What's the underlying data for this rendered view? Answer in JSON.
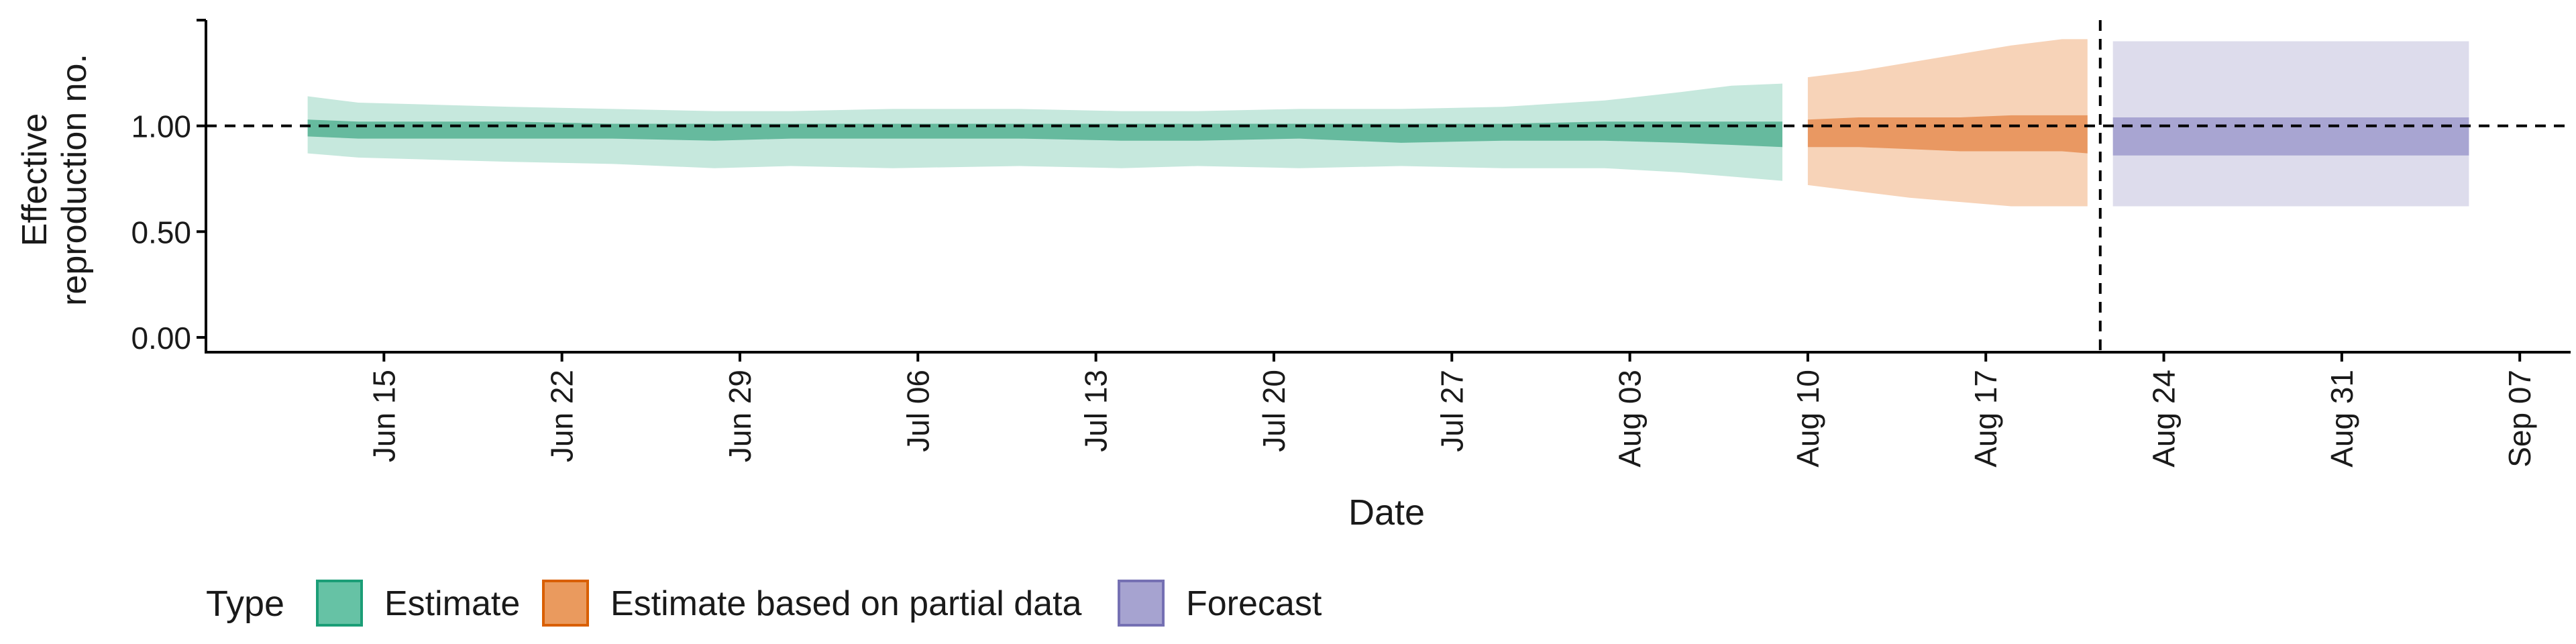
{
  "chart_data": {
    "type": "area",
    "xlabel": "Date",
    "ylabel": [
      "Effective",
      "reproduction no."
    ],
    "x_ticks": [
      {
        "date": "2020-06-15",
        "label": "Jun 15"
      },
      {
        "date": "2020-06-22",
        "label": "Jun 22"
      },
      {
        "date": "2020-06-29",
        "label": "Jun 29"
      },
      {
        "date": "2020-07-06",
        "label": "Jul 06"
      },
      {
        "date": "2020-07-13",
        "label": "Jul 13"
      },
      {
        "date": "2020-07-20",
        "label": "Jul 20"
      },
      {
        "date": "2020-07-27",
        "label": "Jul 27"
      },
      {
        "date": "2020-08-03",
        "label": "Aug 03"
      },
      {
        "date": "2020-08-10",
        "label": "Aug 10"
      },
      {
        "date": "2020-08-17",
        "label": "Aug 17"
      },
      {
        "date": "2020-08-24",
        "label": "Aug 24"
      },
      {
        "date": "2020-08-31",
        "label": "Aug 31"
      },
      {
        "date": "2020-09-07",
        "label": "Sep 07"
      }
    ],
    "y_ticks": [
      {
        "value": 0,
        "label": "0.00"
      },
      {
        "value": 0.5,
        "label": "0.50"
      },
      {
        "value": 1,
        "label": "1.00"
      },
      {
        "value": 1.5,
        "label": ""
      }
    ],
    "xlim": [
      "2020-06-08",
      "2020-09-09"
    ],
    "ylim": [
      -0.07,
      1.5
    ],
    "reference_line_y": 1.0,
    "cutoff_date": "2020-08-21",
    "legend": {
      "title": "Type",
      "position": "bottom-left",
      "items": [
        {
          "label": "Estimate",
          "fill": "#66C2A5",
          "stroke": "#1B9E77"
        },
        {
          "label": "Estimate based on partial data",
          "fill": "#EA9A5E",
          "stroke": "#D95F02"
        },
        {
          "label": "Forecast",
          "fill": "#A6A3D0",
          "stroke": "#7570B3"
        }
      ]
    },
    "series": [
      {
        "type_index": 0,
        "outer_color": "#C6E8DD",
        "inner_color": "#66BA9E",
        "points": [
          {
            "date": "2020-06-12",
            "lo90": 0.87,
            "hi90": 1.14,
            "lo50": 0.95,
            "hi50": 1.03
          },
          {
            "date": "2020-06-14",
            "lo90": 0.85,
            "hi90": 1.11,
            "lo50": 0.94,
            "hi50": 1.02
          },
          {
            "date": "2020-06-17",
            "lo90": 0.84,
            "hi90": 1.1,
            "lo50": 0.94,
            "hi50": 1.02
          },
          {
            "date": "2020-06-20",
            "lo90": 0.83,
            "hi90": 1.09,
            "lo50": 0.94,
            "hi50": 1.02
          },
          {
            "date": "2020-06-24",
            "lo90": 0.82,
            "hi90": 1.08,
            "lo50": 0.94,
            "hi50": 1.01
          },
          {
            "date": "2020-06-28",
            "lo90": 0.8,
            "hi90": 1.07,
            "lo50": 0.93,
            "hi50": 1.01
          },
          {
            "date": "2020-07-01",
            "lo90": 0.81,
            "hi90": 1.07,
            "lo50": 0.94,
            "hi50": 1.01
          },
          {
            "date": "2020-07-05",
            "lo90": 0.8,
            "hi90": 1.08,
            "lo50": 0.94,
            "hi50": 1.01
          },
          {
            "date": "2020-07-10",
            "lo90": 0.81,
            "hi90": 1.08,
            "lo50": 0.94,
            "hi50": 1.01
          },
          {
            "date": "2020-07-14",
            "lo90": 0.8,
            "hi90": 1.07,
            "lo50": 0.93,
            "hi50": 1.01
          },
          {
            "date": "2020-07-17",
            "lo90": 0.81,
            "hi90": 1.07,
            "lo50": 0.93,
            "hi50": 1.01
          },
          {
            "date": "2020-07-21",
            "lo90": 0.8,
            "hi90": 1.08,
            "lo50": 0.94,
            "hi50": 1.01
          },
          {
            "date": "2020-07-25",
            "lo90": 0.81,
            "hi90": 1.08,
            "lo50": 0.92,
            "hi50": 1.01
          },
          {
            "date": "2020-07-29",
            "lo90": 0.8,
            "hi90": 1.09,
            "lo50": 0.93,
            "hi50": 1.01
          },
          {
            "date": "2020-08-02",
            "lo90": 0.8,
            "hi90": 1.12,
            "lo50": 0.93,
            "hi50": 1.02
          },
          {
            "date": "2020-08-05",
            "lo90": 0.78,
            "hi90": 1.16,
            "lo50": 0.92,
            "hi50": 1.02
          },
          {
            "date": "2020-08-07",
            "lo90": 0.76,
            "hi90": 1.19,
            "lo50": 0.91,
            "hi50": 1.02
          },
          {
            "date": "2020-08-09",
            "lo90": 0.74,
            "hi90": 1.2,
            "lo50": 0.9,
            "hi50": 1.02
          }
        ]
      },
      {
        "type_index": 1,
        "outer_color": "#F7D3B8",
        "inner_color": "#E99862",
        "points": [
          {
            "date": "2020-08-10",
            "lo90": 0.72,
            "hi90": 1.23,
            "lo50": 0.9,
            "hi50": 1.03
          },
          {
            "date": "2020-08-12",
            "lo90": 0.69,
            "hi90": 1.26,
            "lo50": 0.9,
            "hi50": 1.04
          },
          {
            "date": "2020-08-14",
            "lo90": 0.66,
            "hi90": 1.3,
            "lo50": 0.89,
            "hi50": 1.04
          },
          {
            "date": "2020-08-16",
            "lo90": 0.64,
            "hi90": 1.34,
            "lo50": 0.88,
            "hi50": 1.04
          },
          {
            "date": "2020-08-18",
            "lo90": 0.62,
            "hi90": 1.38,
            "lo50": 0.88,
            "hi50": 1.05
          },
          {
            "date": "2020-08-20",
            "lo90": 0.62,
            "hi90": 1.41,
            "lo50": 0.88,
            "hi50": 1.05
          },
          {
            "date": "2020-08-21",
            "lo90": 0.62,
            "hi90": 1.41,
            "lo50": 0.87,
            "hi50": 1.05
          }
        ]
      },
      {
        "type_index": 2,
        "outer_color": "#DDDCEC",
        "inner_color": "#A8A5D2",
        "points": [
          {
            "date": "2020-08-22",
            "lo90": 0.62,
            "hi90": 1.4,
            "lo50": 0.86,
            "hi50": 1.04
          },
          {
            "date": "2020-09-05",
            "lo90": 0.62,
            "hi90": 1.4,
            "lo50": 0.86,
            "hi50": 1.04
          }
        ]
      }
    ]
  }
}
